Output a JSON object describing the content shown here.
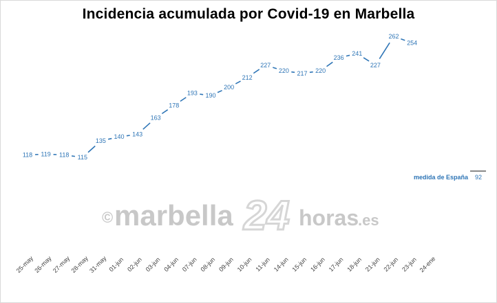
{
  "chart_data": {
    "type": "line",
    "title": "Incidencia acumulada por Covid-19 en Marbella",
    "categories": [
      "25-may",
      "26-may",
      "27-may",
      "28-may",
      "31-may",
      "01-jun",
      "02-jun",
      "03-jun",
      "04-jun",
      "07-jun",
      "08-jun",
      "09-jun",
      "10-jun",
      "11-jun",
      "14-jun",
      "15-jun",
      "16-jun",
      "17-jun",
      "18-jun",
      "21-jun",
      "22-jun",
      "23-jun",
      "24-ene"
    ],
    "series": [
      {
        "values": [
          118,
          119,
          118,
          115,
          135,
          140,
          143,
          163,
          178,
          193,
          190,
          200,
          212,
          227,
          220,
          217,
          220,
          236,
          241,
          227,
          262,
          254,
          null
        ]
      }
    ],
    "reference": {
      "label": "medida de España",
      "value": 92
    },
    "xlabel": "",
    "ylabel": "",
    "grid": false,
    "series_color": "#2e75b6"
  },
  "watermark": {
    "copyright": "©",
    "part1": "marbella",
    "part2": "24",
    "part3": "horas",
    "part4": ".es"
  }
}
